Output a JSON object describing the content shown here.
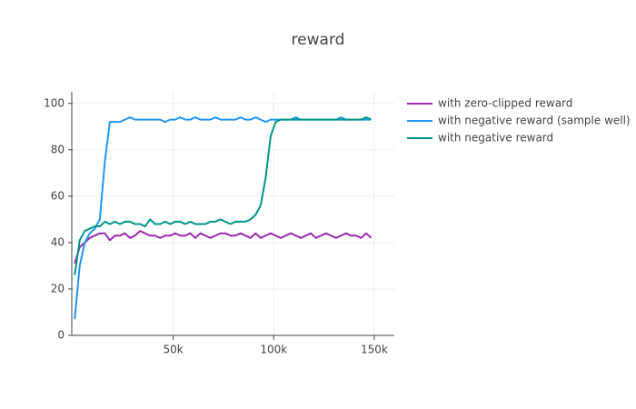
{
  "chart_data": {
    "type": "line",
    "title": "reward",
    "x": [
      1000,
      3500,
      6000,
      8500,
      11000,
      13500,
      16000,
      18500,
      21000,
      23500,
      26000,
      28500,
      31000,
      33500,
      36000,
      38500,
      41000,
      43500,
      46000,
      48500,
      51000,
      53500,
      56000,
      58500,
      61000,
      63500,
      66000,
      68500,
      71000,
      73500,
      76000,
      78500,
      81000,
      83500,
      86000,
      88500,
      91000,
      93500,
      96000,
      98500,
      101000,
      103500,
      106000,
      108500,
      111000,
      113500,
      116000,
      118500,
      121000,
      123500,
      126000,
      128500,
      131000,
      133500,
      136000,
      138500,
      141000,
      143500,
      146000,
      148500
    ],
    "series": [
      {
        "name": "with zero-clipped reward",
        "color": "#9c27b0",
        "values": [
          31,
          38,
          40,
          42,
          43,
          44,
          44,
          41,
          43,
          43,
          44,
          42,
          43,
          45,
          44,
          43,
          43,
          42,
          43,
          43,
          44,
          43,
          43,
          44,
          42,
          44,
          43,
          42,
          43,
          44,
          44,
          43,
          43,
          44,
          43,
          42,
          44,
          42,
          43,
          44,
          43,
          42,
          43,
          44,
          43,
          42,
          43,
          44,
          42,
          43,
          44,
          43,
          42,
          43,
          44,
          43,
          43,
          42,
          44,
          42
        ]
      },
      {
        "name": "with negative reward (sample well)",
        "color": "#2196f3",
        "values": [
          7,
          30,
          40,
          44,
          46,
          50,
          75,
          92,
          92,
          92,
          93,
          94,
          93,
          93,
          93,
          93,
          93,
          93,
          92,
          93,
          93,
          94,
          93,
          93,
          94,
          93,
          93,
          93,
          94,
          93,
          93,
          93,
          93,
          94,
          93,
          93,
          94,
          93,
          92,
          93,
          93,
          93,
          93,
          93,
          94,
          93,
          93,
          93,
          93,
          93,
          93,
          93,
          93,
          94,
          93,
          93,
          93,
          93,
          93,
          93
        ]
      },
      {
        "name": "with negative reward",
        "color": "#009688",
        "values": [
          26,
          41,
          45,
          46,
          47,
          47,
          49,
          48,
          49,
          48,
          49,
          49,
          48,
          48,
          47,
          50,
          48,
          48,
          49,
          48,
          49,
          49,
          48,
          49,
          48,
          48,
          48,
          49,
          49,
          50,
          49,
          48,
          49,
          49,
          49,
          50,
          52,
          56,
          68,
          86,
          92,
          93,
          93,
          93,
          93,
          93,
          93,
          93,
          93,
          93,
          93,
          93,
          93,
          93,
          93,
          93,
          93,
          93,
          94,
          93
        ]
      }
    ],
    "xlim": [
      0,
      160000
    ],
    "xticks": [
      {
        "value": 50000,
        "label": "50k"
      },
      {
        "value": 100000,
        "label": "100k"
      },
      {
        "value": 150000,
        "label": "150k"
      }
    ],
    "ylim": [
      0,
      105
    ],
    "yticks": [
      0,
      20,
      40,
      60,
      80,
      100
    ],
    "grid": true
  }
}
